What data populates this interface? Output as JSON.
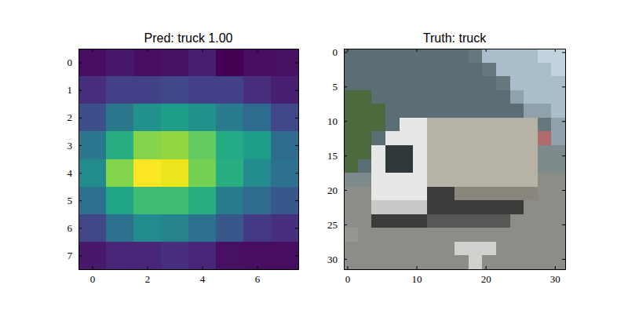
{
  "chart_data": [
    {
      "type": "heatmap",
      "title": "Pred: truck 1.00",
      "color": "viridis",
      "xlim": [
        -0.5,
        7.5
      ],
      "ylim": [
        7.5,
        -0.5
      ],
      "xticks": [
        0,
        2,
        4,
        6
      ],
      "yticks": [
        0,
        1,
        2,
        3,
        4,
        5,
        6,
        7
      ],
      "color_range": [
        0.02,
        0.98
      ],
      "cells": [
        [
          0.05,
          0.08,
          0.05,
          0.06,
          0.1,
          0.02,
          0.05,
          0.06
        ],
        [
          0.15,
          0.2,
          0.2,
          0.22,
          0.2,
          0.2,
          0.15,
          0.1
        ],
        [
          0.25,
          0.4,
          0.5,
          0.55,
          0.5,
          0.42,
          0.35,
          0.22
        ],
        [
          0.4,
          0.62,
          0.8,
          0.82,
          0.75,
          0.6,
          0.55,
          0.35
        ],
        [
          0.48,
          0.8,
          0.98,
          0.95,
          0.78,
          0.62,
          0.48,
          0.38
        ],
        [
          0.38,
          0.58,
          0.68,
          0.68,
          0.62,
          0.42,
          0.35,
          0.28
        ],
        [
          0.22,
          0.38,
          0.48,
          0.45,
          0.38,
          0.28,
          0.18,
          0.15
        ],
        [
          0.08,
          0.12,
          0.12,
          0.15,
          0.12,
          0.06,
          0.05,
          0.05
        ]
      ]
    },
    {
      "type": "image",
      "title": "Truth: truck",
      "xlim": [
        -0.5,
        31.5
      ],
      "ylim": [
        31.5,
        -0.5
      ],
      "xticks": [
        0,
        10,
        20,
        30
      ],
      "yticks": [
        0,
        5,
        10,
        15,
        20,
        25,
        30
      ],
      "pixels": [
        [
          "#5b6e76",
          "#5b6e76",
          "#5b6e76",
          "#5b6e76",
          "#5b6e76",
          "#5b6e76",
          "#5b6e76",
          "#5b6e76",
          "#5b6e76",
          "#66787e",
          "#a9bdca",
          "#a9bdca",
          "#a9bdca",
          "#a9bdca",
          "#c3d3dd",
          "#c3d3dd"
        ],
        [
          "#5b6e76",
          "#5b6e76",
          "#5b6e76",
          "#5b6e76",
          "#5b6e76",
          "#5b6e76",
          "#5b6e76",
          "#5b6e76",
          "#5b6e76",
          "#5b6e76",
          "#66787e",
          "#a9bdca",
          "#a9bdca",
          "#a9bdca",
          "#a9bdca",
          "#c3d3dd"
        ],
        [
          "#5b6e76",
          "#5b6e76",
          "#5b6e76",
          "#5b6e76",
          "#5b6e76",
          "#5b6e76",
          "#5b6e76",
          "#5b6e76",
          "#5b6e76",
          "#5b6e76",
          "#5b6e76",
          "#66787e",
          "#a9bdca",
          "#a9bdca",
          "#a9bdca",
          "#a9bdca"
        ],
        [
          "#4b6a3e",
          "#4b6a3e",
          "#5b6e76",
          "#5b6e76",
          "#5b6e76",
          "#5b6e76",
          "#5b6e76",
          "#5b6e76",
          "#5b6e76",
          "#5b6e76",
          "#5b6e76",
          "#5b6e76",
          "#8fa2ab",
          "#a9bdca",
          "#a9bdca",
          "#a9bdca"
        ],
        [
          "#4b6a3e",
          "#4b6a3e",
          "#4b6a3e",
          "#5b6e76",
          "#5b6e76",
          "#5b6e76",
          "#5b6e76",
          "#5b6e76",
          "#5b6e76",
          "#5b6e76",
          "#5b6e76",
          "#5b6e76",
          "#5b6e76",
          "#8fa2ab",
          "#8fa2ab",
          "#a9bdca"
        ],
        [
          "#4b6a3e",
          "#4b6a3e",
          "#4b6a3e",
          "#5b6e76",
          "#e6e7e6",
          "#e6e7e6",
          "#b6b2a6",
          "#b6b2a6",
          "#b6b2a6",
          "#b6b2a6",
          "#b6b2a6",
          "#b6b2a6",
          "#b6b2a6",
          "#b6b2a6",
          "#66787e",
          "#8fa2ab"
        ],
        [
          "#4b6a3e",
          "#4b6a3e",
          "#5b6e76",
          "#e6e7e6",
          "#e6e7e6",
          "#e6e7e6",
          "#b6b2a6",
          "#b6b2a6",
          "#b6b2a6",
          "#b6b2a6",
          "#b6b2a6",
          "#b6b2a6",
          "#b6b2a6",
          "#b6b2a6",
          "#b06a6a",
          "#8fa2ab"
        ],
        [
          "#4b6a3e",
          "#4b6a3e",
          "#e6e7e6",
          "#2f383b",
          "#2f383b",
          "#e6e7e6",
          "#b6b2a6",
          "#b6b2a6",
          "#b6b2a6",
          "#b6b2a6",
          "#b6b2a6",
          "#b6b2a6",
          "#b6b2a6",
          "#b6b2a6",
          "#7e8a8c",
          "#7e8a8c"
        ],
        [
          "#4b6a3e",
          "#5b6e76",
          "#e6e7e6",
          "#2f383b",
          "#2f383b",
          "#e6e7e6",
          "#b6b2a6",
          "#b6b2a6",
          "#b6b2a6",
          "#b6b2a6",
          "#b6b2a6",
          "#b6b2a6",
          "#b6b2a6",
          "#b6b2a6",
          "#7e8a8c",
          "#7e8a8c"
        ],
        [
          "#7e8a8c",
          "#7e8a8c",
          "#e6e7e6",
          "#e6e7e6",
          "#e6e7e6",
          "#e6e7e6",
          "#b6b2a6",
          "#b6b2a6",
          "#b6b2a6",
          "#b6b2a6",
          "#b6b2a6",
          "#b6b2a6",
          "#b6b2a6",
          "#b6b2a6",
          "#8b8d89",
          "#8b8d89"
        ],
        [
          "#8b8d89",
          "#8b8d89",
          "#e6e7e6",
          "#e6e7e6",
          "#e6e7e6",
          "#e6e7e6",
          "#3b3c3a",
          "#3b3c3a",
          "#8a867c",
          "#8a867c",
          "#8a867c",
          "#8a867c",
          "#8a867c",
          "#8a867c",
          "#8b8d89",
          "#8b8d89"
        ],
        [
          "#8b8d89",
          "#8b8d89",
          "#c9c9c8",
          "#c9c9c8",
          "#c9c9c8",
          "#c9c9c8",
          "#3b3c3a",
          "#3b3c3a",
          "#3b3c3a",
          "#3b3c3a",
          "#3b3c3a",
          "#3b3c3a",
          "#3b3c3a",
          "#8b8d89",
          "#8b8d89",
          "#8b8d89"
        ],
        [
          "#8b8d89",
          "#8b8d89",
          "#3b3c3a",
          "#3b3c3a",
          "#3b3c3a",
          "#3b3c3a",
          "#575856",
          "#575856",
          "#575856",
          "#575856",
          "#575856",
          "#575856",
          "#8b8d89",
          "#8b8d89",
          "#8b8d89",
          "#8b8d89"
        ],
        [
          "#959793",
          "#8b8d89",
          "#8b8d89",
          "#8b8d89",
          "#8b8d89",
          "#8b8d89",
          "#8b8d89",
          "#8b8d89",
          "#8b8d89",
          "#8b8d89",
          "#8b8d89",
          "#8b8d89",
          "#8b8d89",
          "#8b8d89",
          "#8b8d89",
          "#8b8d89"
        ],
        [
          "#8b8d89",
          "#8b8d89",
          "#8b8d89",
          "#8b8d89",
          "#8b8d89",
          "#8b8d89",
          "#8b8d89",
          "#8b8d89",
          "#cfd1cf",
          "#cfd1cf",
          "#cfd1cf",
          "#8b8d89",
          "#8b8d89",
          "#8b8d89",
          "#8b8d89",
          "#8b8d89"
        ],
        [
          "#8b8d89",
          "#8b8d89",
          "#8b8d89",
          "#8b8d89",
          "#8b8d89",
          "#8b8d89",
          "#8b8d89",
          "#8b8d89",
          "#8b8d89",
          "#cfd1cf",
          "#8b8d89",
          "#8b8d89",
          "#8b8d89",
          "#8b8d89",
          "#8b8d89",
          "#8b8d89"
        ]
      ]
    }
  ]
}
